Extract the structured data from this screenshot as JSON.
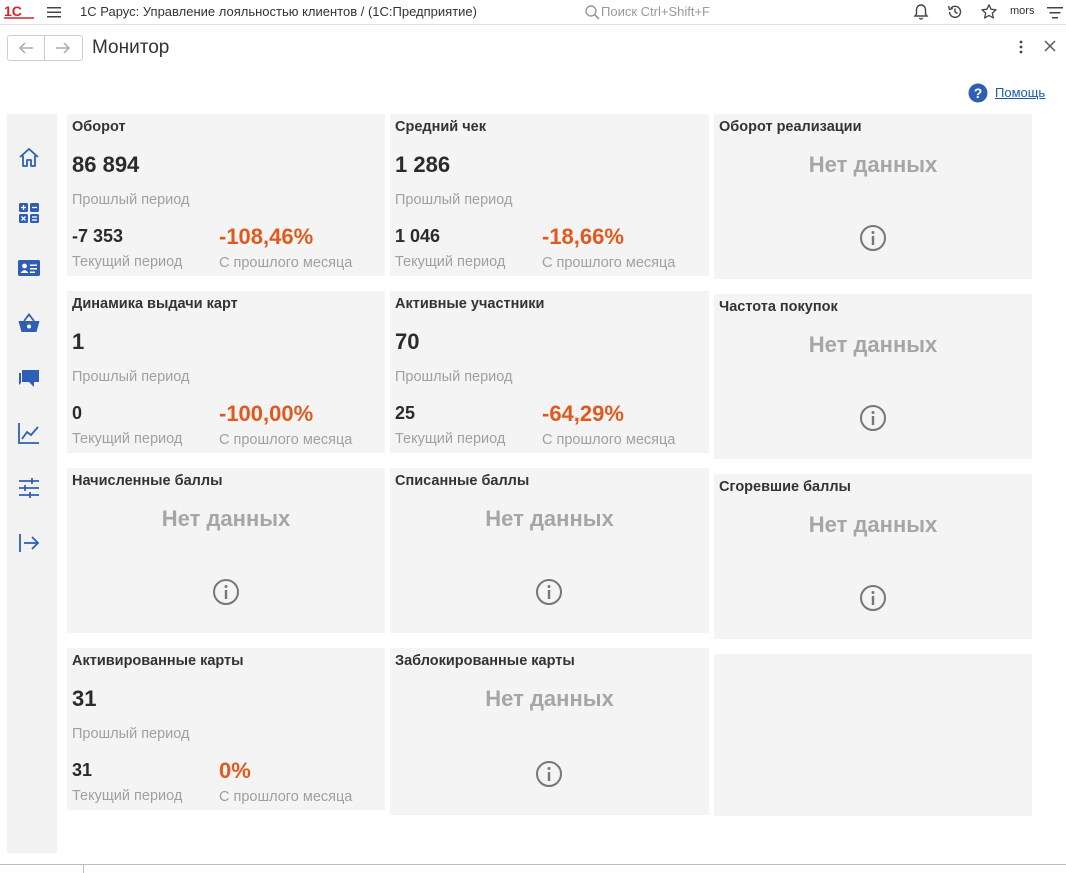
{
  "app": {
    "logo_text": "1С",
    "title": "1С Рарус: Управление лояльностью клиентов /  (1С:Предприятие)",
    "search_placeholder": "Поиск Ctrl+Shift+F",
    "username": "mors"
  },
  "page": {
    "title": "Монитор",
    "help_label": "Помощь"
  },
  "colors": {
    "accent_blue": "#2f5fb3",
    "negative_orange": "#e05a1e",
    "tile_bg": "#f4f4f4",
    "muted_text": "#a0a0a0"
  },
  "sidebar": {
    "items": [
      {
        "icon": "home-icon"
      },
      {
        "icon": "apps-calculator-icon"
      },
      {
        "icon": "contact-card-icon"
      },
      {
        "icon": "basket-icon"
      },
      {
        "icon": "chat-icon"
      },
      {
        "icon": "chart-icon"
      },
      {
        "icon": "sliders-icon"
      },
      {
        "icon": "exit-icon"
      }
    ]
  },
  "tiles": {
    "turnover": {
      "title": "Оборот",
      "value": "86 894",
      "prev_label": "Прошлый период",
      "current_value": "-7 353",
      "current_label": "Текущий период",
      "change": "-108,46%",
      "change_label": "С прошлого месяца"
    },
    "avg_check": {
      "title": "Средний чек",
      "value": "1 286",
      "prev_label": "Прошлый период",
      "current_value": "1 046",
      "current_label": "Текущий период",
      "change": "-18,66%",
      "change_label": "С прошлого месяца"
    },
    "sales_turnover": {
      "title": "Оборот реализации",
      "nodata": "Нет данных"
    },
    "card_issuance": {
      "title": "Динамика выдачи карт",
      "value": "1",
      "prev_label": "Прошлый период",
      "current_value": "0",
      "current_label": "Текущий период",
      "change": "-100,00%",
      "change_label": "С прошлого месяца"
    },
    "active_members": {
      "title": "Активные участники",
      "value": "70",
      "prev_label": "Прошлый период",
      "current_value": "25",
      "current_label": "Текущий период",
      "change": "-64,29%",
      "change_label": "С прошлого месяца"
    },
    "purchase_frequency": {
      "title": "Частота покупок",
      "nodata": "Нет данных"
    },
    "accrued_points": {
      "title": "Начисленные баллы",
      "nodata": "Нет данных"
    },
    "written_off_points": {
      "title": "Списанные баллы",
      "nodata": "Нет данных"
    },
    "expired_points": {
      "title": "Сгоревшие баллы",
      "nodata": "Нет данных"
    },
    "activated_cards": {
      "title": "Активированные карты",
      "value": "31",
      "prev_label": "Прошлый период",
      "current_value": "31",
      "current_label": "Текущий период",
      "change": "0%",
      "change_label": "С прошлого месяца"
    },
    "blocked_cards": {
      "title": "Заблокированные карты",
      "nodata": "Нет данных"
    }
  }
}
